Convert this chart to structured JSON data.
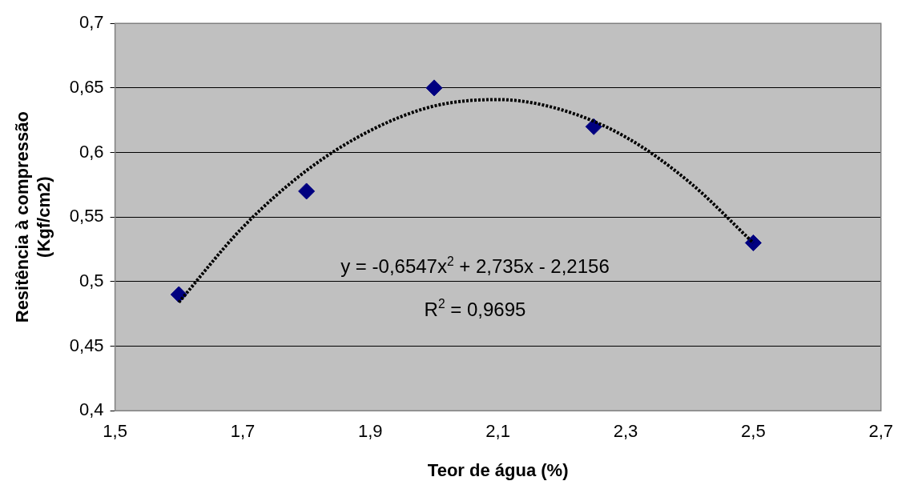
{
  "chart_data": {
    "type": "scatter",
    "xlabel": "Teor de água (%)",
    "ylabel": "Resitência à compressão\n(Kgf/cm2)",
    "series": [
      {
        "color": "#000080",
        "marker": "diamond",
        "x": [
          1.6,
          1.8,
          2.0,
          2.25,
          2.5
        ],
        "values": [
          0.49,
          0.57,
          0.65,
          0.62,
          0.53
        ]
      },
      {
        "type": "line",
        "color": "#000000",
        "line_style": "dotted",
        "marker": "none",
        "x": [
          1.6,
          1.7,
          1.8,
          1.9,
          2.0,
          2.1,
          2.2,
          2.3,
          2.4,
          2.5
        ],
        "values": [
          0.484,
          0.542,
          0.586,
          0.617,
          0.636,
          0.641,
          0.633,
          0.612,
          0.577,
          0.53
        ]
      }
    ],
    "xlim": [
      1.5,
      2.7
    ],
    "xticks": [
      {
        "value": 1.5,
        "label": "1,5"
      },
      {
        "value": 1.7,
        "label": "1,7"
      },
      {
        "value": 1.9,
        "label": "1,9"
      },
      {
        "value": 2.1,
        "label": "2,1"
      },
      {
        "value": 2.3,
        "label": "2,3"
      },
      {
        "value": 2.5,
        "label": "2,5"
      },
      {
        "value": 2.7,
        "label": "2,7"
      }
    ],
    "ylim": [
      0.4,
      0.7
    ],
    "yticks": [
      {
        "value": 0.4,
        "label": "0,4"
      },
      {
        "value": 0.45,
        "label": "0,45"
      },
      {
        "value": 0.5,
        "label": "0,5"
      },
      {
        "value": 0.55,
        "label": "0,55"
      },
      {
        "value": 0.6,
        "label": "0,6"
      },
      {
        "value": 0.65,
        "label": "0,65"
      },
      {
        "value": 0.7,
        "label": "0,7"
      }
    ],
    "grid": "y",
    "legend": false,
    "annotations": [
      "y = -0,6547x$^{2}$ + 2,735x - 2,2156",
      "R$^{2}$ = 0,9695"
    ]
  }
}
